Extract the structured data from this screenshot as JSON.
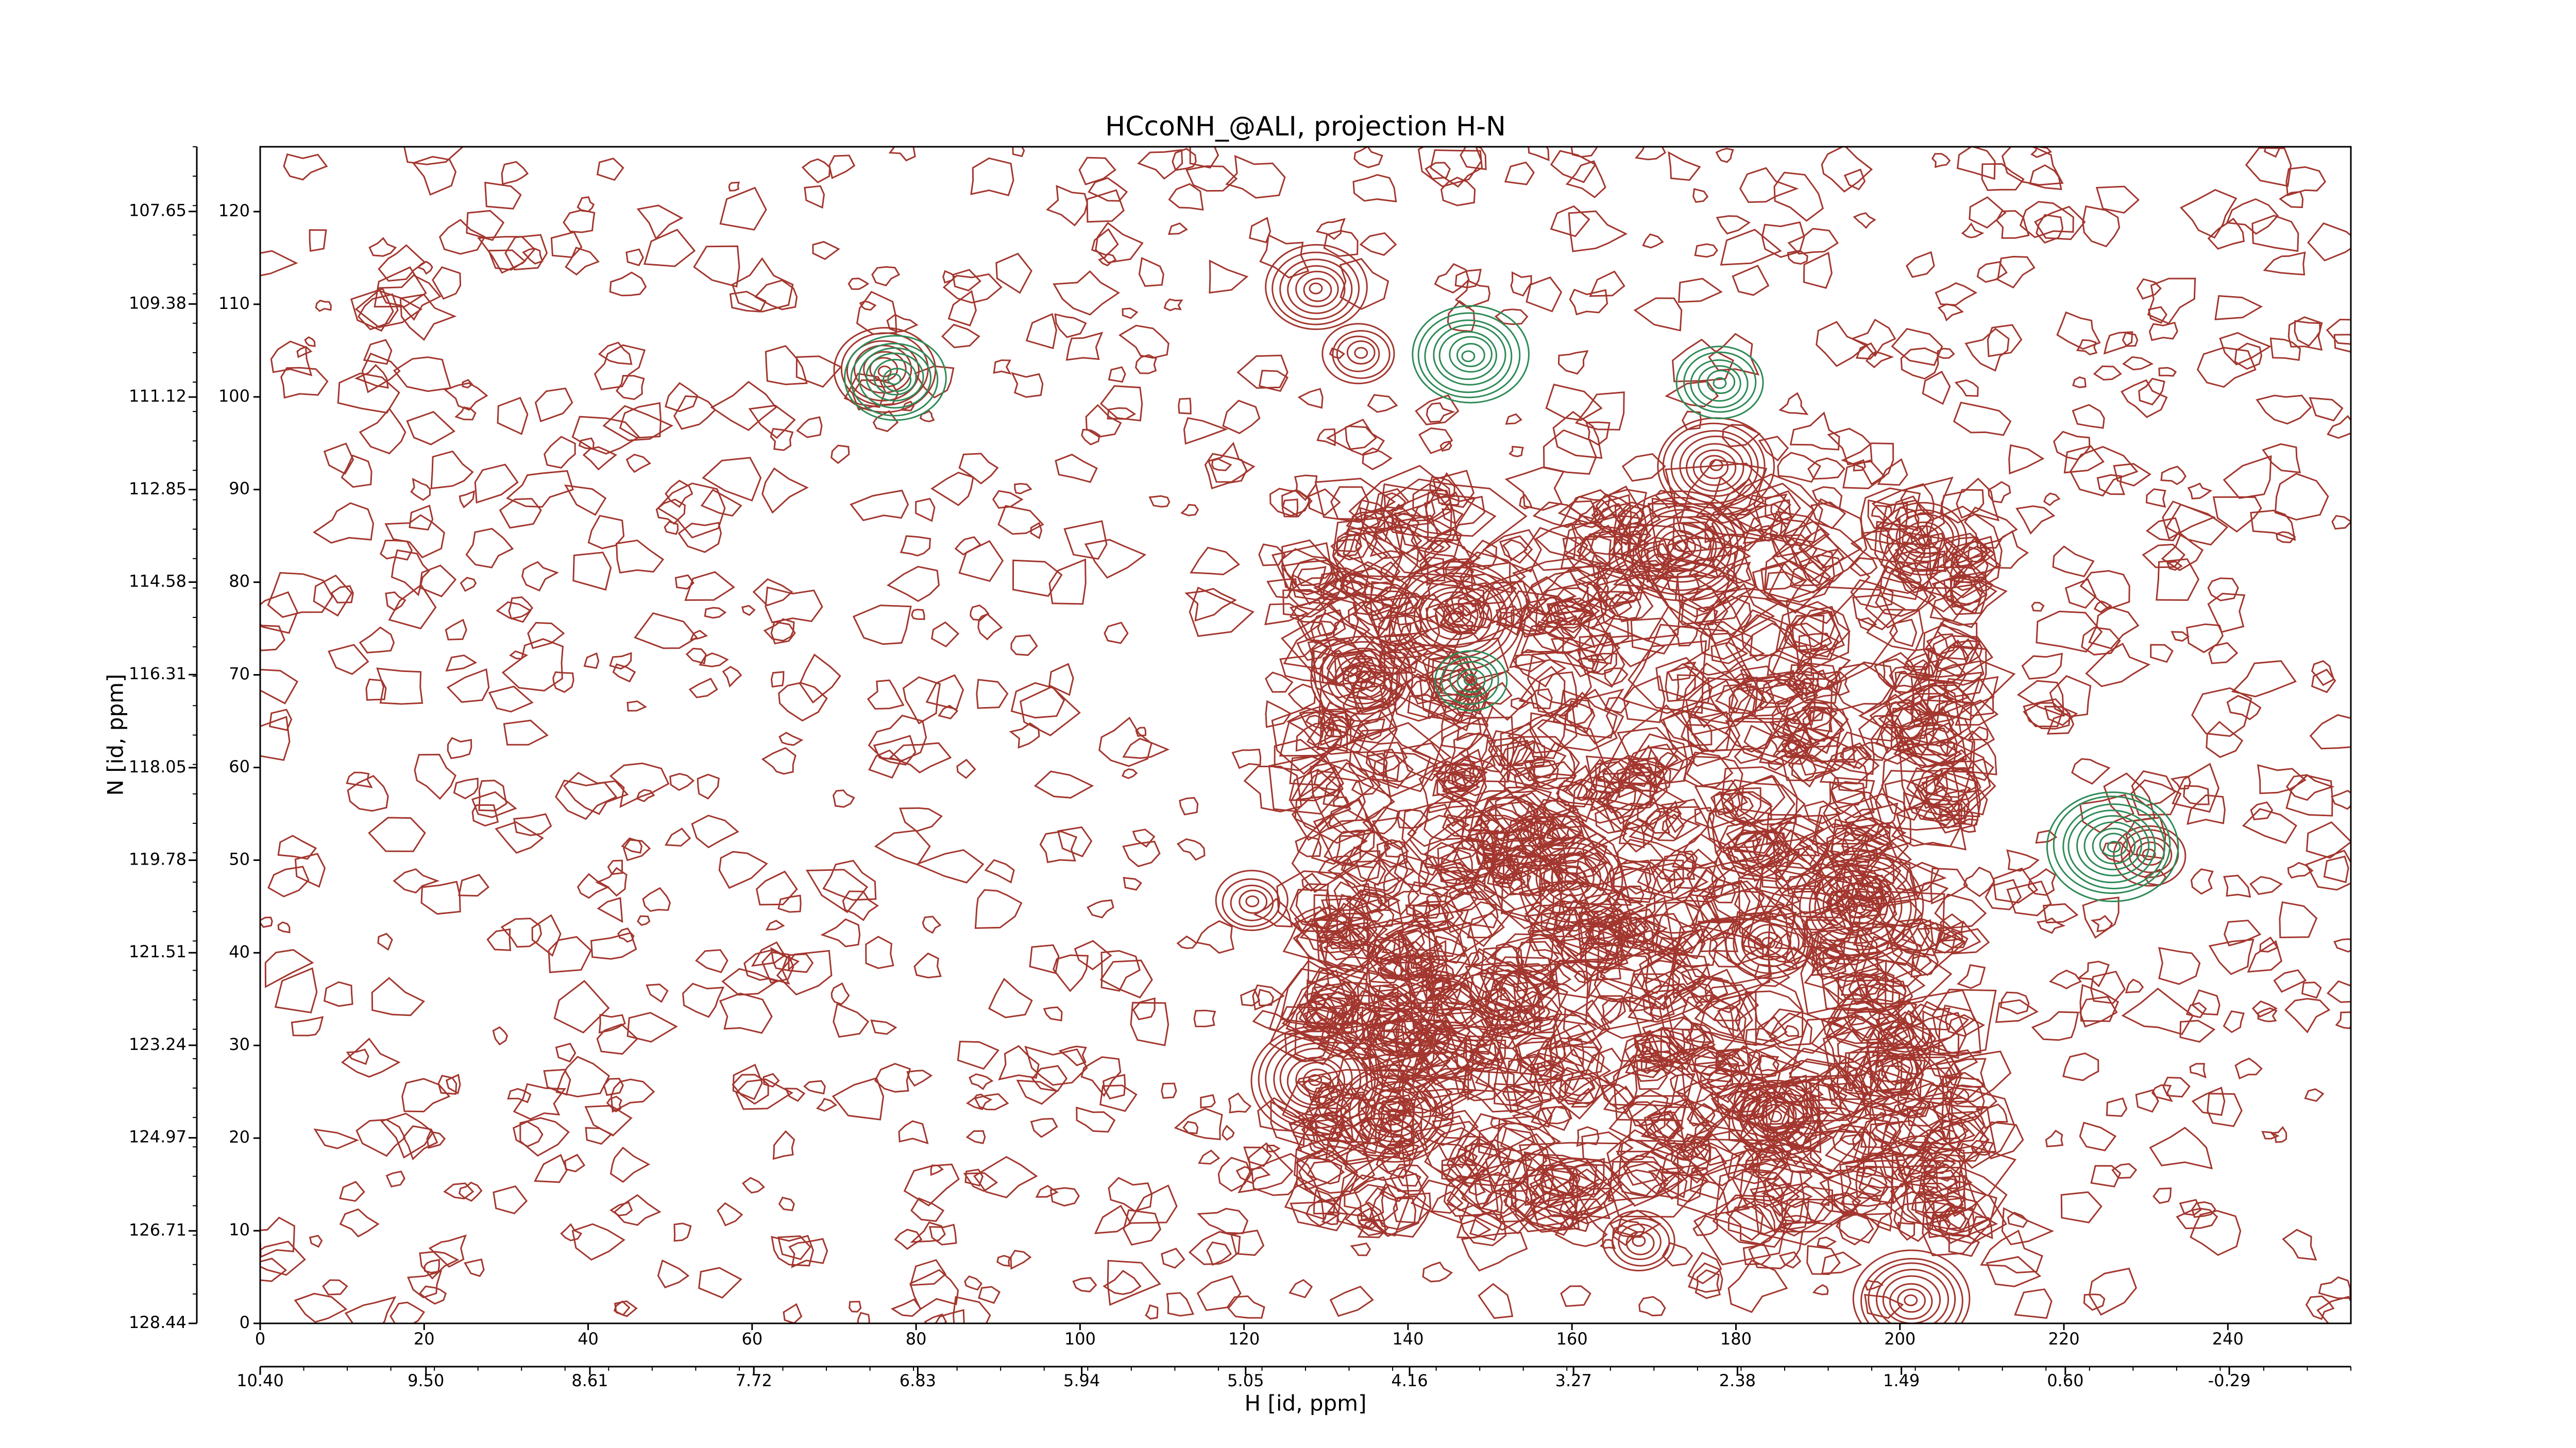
{
  "chart_data": {
    "type": "contour",
    "title": "HCcoNH_@ALI, projection H-N",
    "x_label": "H [id, ppm]",
    "y_label": "N [id, ppm]",
    "xlim": [
      0,
      255
    ],
    "xticks": [
      0,
      20,
      40,
      60,
      80,
      100,
      120,
      140,
      160,
      180,
      200,
      220,
      240
    ],
    "ylim": [
      0,
      127
    ],
    "yticks": [
      0,
      10,
      20,
      30,
      40,
      50,
      60,
      70,
      80,
      90,
      100,
      110,
      120
    ],
    "x2lim": [
      {
        "value": 10.4,
        "label": "10.40"
      },
      -0.95
    ],
    "x2ticks": [
      {
        "value": 10.4,
        "label": "10.40"
      },
      {
        "value": 9.5,
        "label": "9.50"
      },
      8.61,
      7.72,
      6.83,
      5.94,
      5.05,
      4.16,
      3.27,
      2.38,
      1.49,
      {
        "value": 0.6,
        "label": "0.60"
      },
      -0.29
    ],
    "y2lim": [
      128.44,
      106.44
    ],
    "y2ticks": [
      107.65,
      109.38,
      111.12,
      112.85,
      114.58,
      116.31,
      118.05,
      119.78,
      121.51,
      123.24,
      124.97,
      126.71,
      128.44
    ],
    "peaks": [
      {
        "color": "#a3372f",
        "x": [
          134.1,
          134.5,
          173.3,
          184.8,
          138.2,
          230.4,
          128.8,
          145.9,
          184.1,
          201.4,
          168.3,
          76.0,
          128.8,
          203.0,
          177.5,
          121.0,
          160.0,
          195.0
        ],
        "y": [
          104.7,
          69.6,
          83.8,
          22.3,
          22.7,
          50.6,
          111.7,
          76.3,
          41.0,
          2.5,
          8.8,
          102.9,
          26.3,
          84.7,
          92.5,
          45.5,
          48.0,
          45.0
        ]
      },
      {
        "color": "#2e8b57",
        "x": [
          147.5,
          147.7,
          77.5,
          226.0,
          178.0
        ],
        "y": [
          104.5,
          69.4,
          102.0,
          51.5,
          101.5
        ]
      }
    ]
  }
}
